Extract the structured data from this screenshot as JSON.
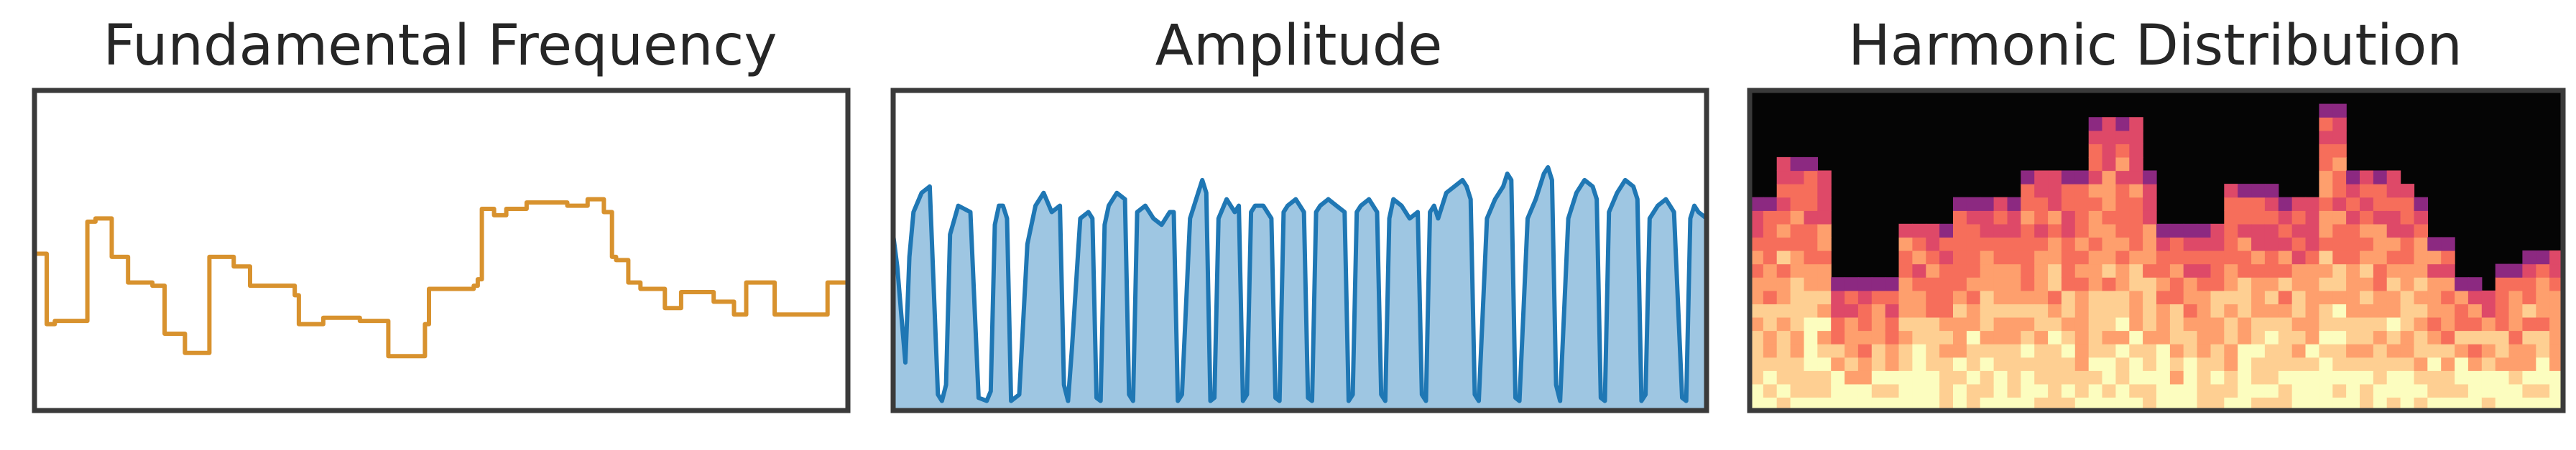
{
  "chart_data": [
    {
      "type": "line",
      "title": "Fundamental Frequency",
      "xlabel": "",
      "ylabel": "",
      "ylim": [
        0,
        100
      ],
      "xlim": [
        0,
        100
      ],
      "grid": false,
      "color": "#d8922e",
      "series": [
        {
          "x": [
            0,
            1.5,
            1.5,
            2.5,
            2.5,
            6.5,
            6.5,
            7.5,
            7.5,
            9.5,
            9.5,
            10.5,
            10.5,
            11.5,
            11.5,
            14.5,
            14.5,
            16,
            16,
            18.5,
            18.5,
            21.5,
            21.5,
            24.5,
            24.5,
            26.5,
            26.5,
            27.5,
            27.5,
            32,
            32,
            32.5,
            32.5,
            33.5,
            33.5,
            35.5,
            35.5,
            38.5,
            38.5,
            40,
            40,
            40.8,
            40.8,
            43.5,
            43.5,
            48,
            48,
            48.5,
            48.5,
            52.5,
            52.5,
            54,
            54,
            54.5,
            54.5,
            55,
            55,
            56.5,
            56.5,
            58,
            58,
            60,
            60,
            60.5,
            60.5,
            65.5,
            65.5,
            68,
            68,
            70,
            70,
            71,
            71,
            71.5,
            71.5,
            73,
            73,
            74.5,
            74.5,
            75.5,
            75.5,
            76.5,
            76.5,
            77.5,
            77.5,
            79.5,
            79.5,
            82.5,
            82.5,
            83.5,
            83.5,
            86,
            86,
            87.5,
            87.5,
            89,
            89,
            91,
            91,
            91.8,
            91.8,
            97.5,
            97.5,
            99,
            99,
            100
          ],
          "y": [
            49,
            49,
            27,
            27,
            28,
            28,
            59,
            59,
            60,
            60,
            48,
            48,
            48,
            48,
            40,
            40,
            39,
            39,
            24,
            24,
            18,
            18,
            48,
            48,
            45,
            45,
            39,
            39,
            39,
            39,
            36,
            36,
            27,
            27,
            27,
            27,
            29,
            29,
            29,
            29,
            28,
            28,
            28,
            28,
            17,
            17,
            27,
            27,
            38,
            38,
            38,
            38,
            39,
            39,
            41,
            41,
            63,
            63,
            61,
            61,
            63,
            63,
            63,
            63,
            65,
            65,
            64,
            64,
            66,
            66,
            62,
            62,
            48,
            48,
            47,
            47,
            40,
            40,
            38,
            38,
            38,
            38,
            38,
            38,
            32,
            32,
            37,
            37,
            37,
            37,
            34,
            34,
            30,
            30,
            40,
            40,
            40,
            40,
            30,
            30,
            30,
            30,
            40,
            40,
            40,
            40
          ]
        }
      ]
    },
    {
      "type": "area",
      "title": "Amplitude",
      "xlabel": "",
      "ylabel": "",
      "ylim": [
        0,
        100
      ],
      "xlim": [
        0,
        100
      ],
      "grid": false,
      "line_color": "#1f77b4",
      "fill_color": "#9ec6e2",
      "series": [
        {
          "x": [
            0,
            0.5,
            1,
            1.5,
            2,
            2.5,
            3.5,
            4.5,
            5.5,
            6,
            6.5,
            7,
            8,
            9.5,
            10.5,
            11.5,
            12,
            12.5,
            13,
            13.5,
            14,
            14.5,
            15.5,
            16.5,
            17.5,
            18,
            18.5,
            19.5,
            20.5,
            21,
            21.5,
            22,
            23,
            24,
            24.5,
            25,
            25.5,
            26,
            26.5,
            27.5,
            28.5,
            29,
            29.5,
            30,
            31,
            32,
            33,
            34,
            34.5,
            35,
            35.5,
            36.5,
            37.5,
            38,
            38.5,
            39,
            39.5,
            40,
            41,
            42,
            42.5,
            43,
            43.5,
            44,
            44.5,
            45.5,
            46.5,
            47,
            47.5,
            48,
            48.5,
            49.5,
            50.5,
            51,
            51.5,
            52,
            52.5,
            53.5,
            54.5,
            55.5,
            56,
            56.5,
            57,
            57.5,
            58.5,
            59.5,
            60,
            60.5,
            61,
            61.5,
            62.5,
            63.5,
            64.5,
            65,
            65.5,
            66,
            66.5,
            67,
            68,
            69,
            70,
            70.5,
            71,
            71.5,
            72,
            73,
            74,
            75,
            75.5,
            76,
            76.5,
            77,
            78,
            79,
            80,
            80.5,
            81,
            81.5,
            82,
            83,
            84,
            85,
            86,
            86.5,
            87,
            87.5,
            88,
            89,
            90,
            91,
            91.5,
            92,
            92.5,
            93,
            94,
            95,
            96,
            97,
            97.5,
            98,
            98.5,
            99,
            100
          ],
          "y": [
            55,
            45,
            30,
            15,
            48,
            62,
            68,
            70,
            5,
            3,
            8,
            55,
            64,
            62,
            4,
            3,
            6,
            58,
            64,
            64,
            60,
            3,
            5,
            52,
            64,
            66,
            68,
            62,
            64,
            8,
            3,
            20,
            60,
            62,
            60,
            4,
            3,
            58,
            64,
            68,
            66,
            5,
            3,
            62,
            64,
            60,
            58,
            62,
            62,
            3,
            5,
            60,
            68,
            72,
            68,
            3,
            4,
            60,
            66,
            62,
            64,
            3,
            5,
            62,
            64,
            64,
            60,
            4,
            3,
            62,
            64,
            66,
            62,
            4,
            3,
            62,
            64,
            66,
            64,
            62,
            3,
            5,
            62,
            64,
            66,
            62,
            5,
            3,
            60,
            66,
            64,
            60,
            62,
            5,
            3,
            62,
            64,
            60,
            68,
            70,
            72,
            70,
            66,
            5,
            3,
            60,
            66,
            70,
            74,
            72,
            4,
            3,
            60,
            66,
            74,
            76,
            72,
            8,
            3,
            60,
            68,
            72,
            70,
            66,
            4,
            3,
            62,
            68,
            72,
            70,
            66,
            3,
            5,
            60,
            64,
            66,
            62,
            4,
            3,
            60,
            64,
            62,
            60
          ]
        }
      ]
    },
    {
      "type": "heatmap",
      "title": "Harmonic Distribution",
      "xlabel": "",
      "ylabel": "",
      "grid": false,
      "colormap": [
        "#050505",
        "#3b0f70",
        "#8c2981",
        "#de4968",
        "#f66e5b",
        "#fe9f6d",
        "#fecf92",
        "#fcfdbf"
      ],
      "columns": 60,
      "rows": 24,
      "column_heights": [
        16,
        16,
        19,
        19,
        19,
        18,
        10,
        10,
        10,
        10,
        10,
        14,
        14,
        14,
        14,
        16,
        16,
        16,
        16,
        16,
        18,
        18,
        18,
        18,
        18,
        22,
        22,
        22,
        22,
        18,
        14,
        14,
        14,
        14,
        14,
        17,
        17,
        17,
        17,
        16,
        16,
        16,
        23,
        23,
        18,
        18,
        18,
        18,
        17,
        16,
        13,
        13,
        10,
        10,
        9,
        11,
        11,
        12,
        12,
        12
      ]
    }
  ]
}
